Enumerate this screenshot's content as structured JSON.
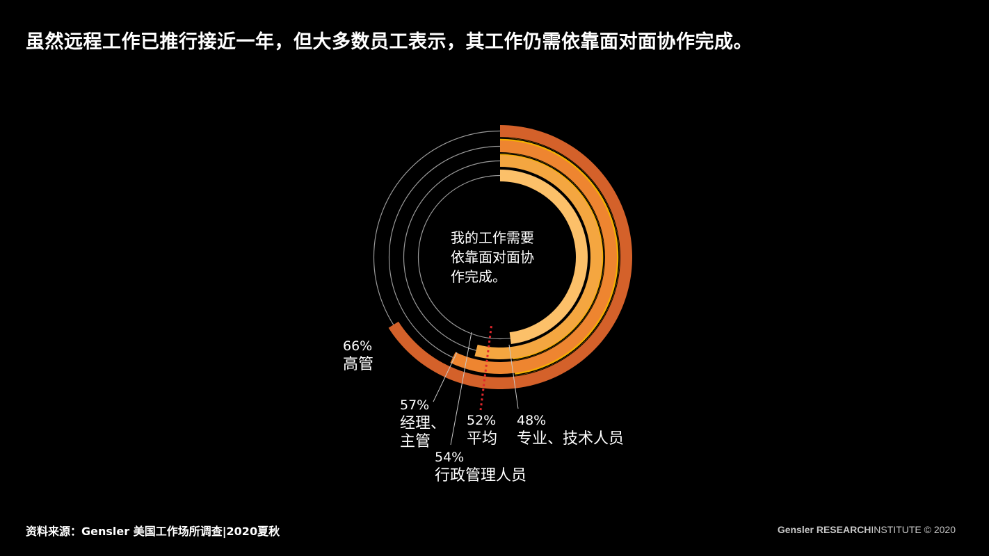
{
  "headline": "虽然远程工作已推行接近一年，但大多数员工表示，其工作仍需依靠面对面协作完成。",
  "footer": {
    "source": "资料来源：Gensler 美国工作场所调查|2020夏秋",
    "credit_brand": "Gensler",
    "credit_research": "RESEARCH",
    "credit_rest": "INSTITUTE © 2020"
  },
  "colors": {
    "background": "#000000",
    "track": "#9a9a9a",
    "average_marker": "#e0262b"
  },
  "chart_data": {
    "type": "radial-bar",
    "center_label": [
      "我的工作需要",
      "依靠面对面协",
      "作完成。"
    ],
    "series": [
      {
        "value_label": "66%",
        "name": "高管",
        "value": 66,
        "color": "#d4612a"
      },
      {
        "value_label": "57%",
        "name": "经理、主管",
        "name_lines": [
          "经理、",
          "主管"
        ],
        "value": 57,
        "color": "#ee8530"
      },
      {
        "value_label": "54%",
        "name": "行政管理人员",
        "value": 54,
        "color": "#f4a640"
      },
      {
        "value_label": "48%",
        "name": "专业、技术人员",
        "value": 48,
        "color": "#fcc069"
      }
    ],
    "band_colors": [
      "#f5b000"
    ],
    "average": {
      "value_label": "52%",
      "name": "平均",
      "value": 52
    }
  }
}
